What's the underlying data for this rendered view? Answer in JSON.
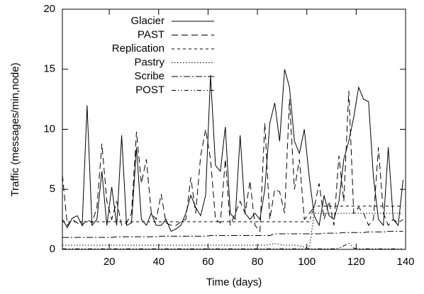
{
  "chart_data": {
    "type": "line",
    "x_label": "Time (days)",
    "y_label": "Traffic (messages/min,node)",
    "xlim": [
      1,
      140
    ],
    "xticks": [
      20,
      40,
      60,
      80,
      100,
      120,
      140
    ],
    "ylim": [
      0,
      20
    ],
    "yticks": [
      0,
      5,
      10,
      15,
      20
    ],
    "legend": "top-left",
    "x": [
      1,
      3,
      5,
      7,
      9,
      11,
      13,
      15,
      17,
      19,
      21,
      23,
      25,
      27,
      29,
      31,
      33,
      35,
      37,
      39,
      41,
      43,
      45,
      47,
      49,
      51,
      53,
      55,
      57,
      59,
      61,
      63,
      65,
      67,
      69,
      71,
      73,
      75,
      77,
      79,
      81,
      83,
      85,
      87,
      89,
      91,
      93,
      95,
      97,
      99,
      101,
      103,
      105,
      107,
      109,
      111,
      113,
      115,
      117,
      119,
      121,
      123,
      125,
      127,
      129,
      131,
      133,
      135,
      137,
      139
    ],
    "series": [
      {
        "name": "Glacier",
        "color": "#000000",
        "dash": "none",
        "values": [
          2.5,
          1.8,
          2.6,
          2.8,
          2,
          12,
          2,
          2.5,
          6.5,
          2,
          5.2,
          2,
          9.5,
          2,
          2.2,
          8.5,
          2.5,
          2,
          3,
          2,
          2,
          2.5,
          1.5,
          1.7,
          2,
          3,
          4.5,
          3.5,
          2.8,
          4.5,
          14.5,
          7,
          6.5,
          10.2,
          3,
          2.5,
          9.5,
          3,
          2.5,
          3,
          2.5,
          5,
          10.5,
          12.2,
          9,
          15,
          13.5,
          9,
          8,
          10,
          6,
          2.8,
          2,
          4.5,
          2.8,
          2.5,
          4,
          7.5,
          9,
          11,
          13.5,
          12.5,
          12.3,
          6,
          2.5,
          2,
          8.5,
          2.5,
          2,
          5.8
        ]
      },
      {
        "name": "PAST",
        "color": "#000000",
        "dash": "9,5",
        "values": [
          6.2,
          2,
          2.5,
          2.2,
          2,
          2.5,
          2.2,
          3.5,
          8.8,
          4,
          2.5,
          4,
          2,
          2.2,
          3,
          9.8,
          5.5,
          7.5,
          3,
          2.5,
          4.6,
          2.2,
          2,
          2,
          2.3,
          2.5,
          6,
          3,
          7.8,
          10,
          7.5,
          2.5,
          2.2,
          7.5,
          2,
          3,
          4,
          3,
          5.7,
          2,
          1.5,
          10.5,
          2.5,
          5,
          4.8,
          3,
          12.5,
          5,
          7.5,
          2.5,
          3,
          3.5,
          5.5,
          2.5,
          4,
          2,
          7.8,
          4,
          13.2,
          3,
          3.5,
          3,
          2,
          2.5,
          8.5,
          3,
          2,
          2.5,
          2.2,
          2.5
        ]
      },
      {
        "name": "Replication",
        "color": "#000000",
        "dash": "4,4",
        "values": [
          2.3,
          2.3,
          2.3,
          2.3,
          2.3,
          2.3,
          2.3,
          2.3,
          2.3,
          2.3,
          2.3,
          2.3,
          2.3,
          2.3,
          2.3,
          2.3,
          2.3,
          2.3,
          2.3,
          2.3,
          2.3,
          2.3,
          2.3,
          2.3,
          2.3,
          2.3,
          2.3,
          2.3,
          2.3,
          2.3,
          2.3,
          2.3,
          2.3,
          2.3,
          2.3,
          2.3,
          2.3,
          2.3,
          2.3,
          2.3,
          2.3,
          2.3,
          2.3,
          2.3,
          2.3,
          2.3,
          2.3,
          2.3,
          2.3,
          2.3,
          2.3,
          3.6,
          3.6,
          3.6,
          3.6,
          3.6,
          3.6,
          3.6,
          3.6,
          3.6,
          3.6,
          3.6,
          3.6,
          3.6,
          3.6,
          3.6,
          3.6,
          3.6,
          3.6,
          3.6
        ]
      },
      {
        "name": "Pastry",
        "color": "#000000",
        "dash": "1.5,2.5",
        "values": [
          0.35,
          0.35,
          0.35,
          0.35,
          0.35,
          0.35,
          0.35,
          0.35,
          0.35,
          0.35,
          0.35,
          0.35,
          0.35,
          0.35,
          0.35,
          0.35,
          0.35,
          0.35,
          0.35,
          0.35,
          0.35,
          0.35,
          0.35,
          0.35,
          0.35,
          0.35,
          0.35,
          0.35,
          0.35,
          0.35,
          0.35,
          0.35,
          0.35,
          0.35,
          0.35,
          0.35,
          0.35,
          0.35,
          0.35,
          0.35,
          0.35,
          0.35,
          0.4,
          0.5,
          0.4,
          0.35,
          0.35,
          0.35,
          0.3,
          0.2,
          0.1,
          3,
          3,
          3,
          3,
          3,
          3,
          3,
          3,
          3,
          3,
          3,
          3,
          3,
          3,
          3,
          3,
          3,
          3,
          3
        ]
      },
      {
        "name": "Scribe",
        "color": "#000000",
        "dash": "9,3,2,3",
        "values": [
          1,
          1,
          1,
          1,
          1,
          1,
          1,
          1,
          1,
          1,
          1,
          1.05,
          1.05,
          1.05,
          1.05,
          1.05,
          1.05,
          1.05,
          1.05,
          1.05,
          1.1,
          1.1,
          1.1,
          1.1,
          1.1,
          1.1,
          1.1,
          1.1,
          1.1,
          1.1,
          1.15,
          1.15,
          1.15,
          1.15,
          1.15,
          1.15,
          1.15,
          1.15,
          1.15,
          1.15,
          1.15,
          1.15,
          1.15,
          1.3,
          1.3,
          1.3,
          1.3,
          1.3,
          1.3,
          1.3,
          1.3,
          1.3,
          1.3,
          1.35,
          1.35,
          1.35,
          1.35,
          1.4,
          1.4,
          1.4,
          1.4,
          1.4,
          1.45,
          1.45,
          1.45,
          1.45,
          1.5,
          1.5,
          1.5,
          1.5
        ]
      },
      {
        "name": "POST",
        "color": "#000000",
        "dash": "6,3,1.5,3,1.5,3",
        "values": [
          0.05,
          0.05,
          0.05,
          0.05,
          0.05,
          0.05,
          0.05,
          0.05,
          0.05,
          0.05,
          0.05,
          0.05,
          0.05,
          0.05,
          0.05,
          0.05,
          0.05,
          0.05,
          0.05,
          0.05,
          0.05,
          0.05,
          0.05,
          0.05,
          0.05,
          0.05,
          0.05,
          0.05,
          0.05,
          0.05,
          0.05,
          0.05,
          0.05,
          0.05,
          0.05,
          0.05,
          0.05,
          0.05,
          0.05,
          0.05,
          0.05,
          0.05,
          0.05,
          0.05,
          0.05,
          0.05,
          0.05,
          0.05,
          0.05,
          0.05,
          0.05,
          0.05,
          0.05,
          0.05,
          0.05,
          0.05,
          0.1,
          0.3,
          0.5,
          0.1,
          0.05,
          0.05,
          0.05,
          0.05,
          0.05,
          0.05,
          0.05,
          0.05,
          0.05,
          0.05
        ]
      }
    ]
  }
}
